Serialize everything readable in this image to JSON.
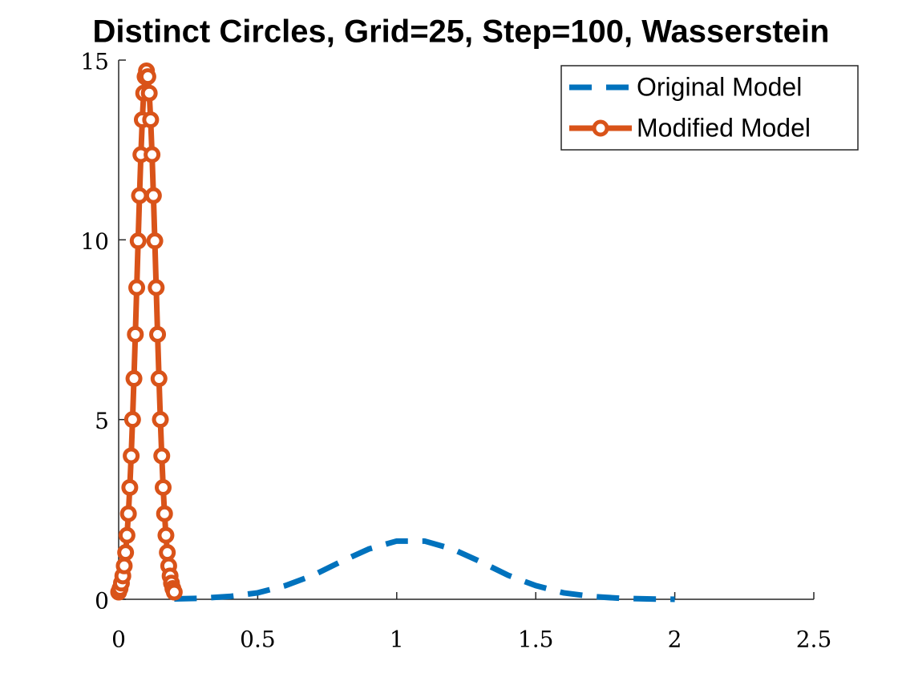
{
  "chart_data": {
    "type": "line",
    "title": "Distinct Circles, Grid=25, Step=100, Wasserstein",
    "xlim": [
      0,
      2.5
    ],
    "xticks": [
      0,
      0.5,
      1,
      1.5,
      2,
      2.5
    ],
    "ylim": [
      0,
      15
    ],
    "yticks": [
      0,
      5,
      10,
      15
    ],
    "legend": "upper right",
    "series": [
      {
        "name": "Original Model",
        "color": "#0072BD",
        "style": "dashed",
        "x": [
          0.2,
          0.3,
          0.4,
          0.5,
          0.6,
          0.7,
          0.8,
          0.9,
          1.0,
          1.1,
          1.2,
          1.3,
          1.4,
          1.5,
          1.6,
          1.7,
          1.8,
          1.9,
          2.0
        ],
        "values": [
          0.01,
          0.03,
          0.08,
          0.18,
          0.38,
          0.67,
          1.05,
          1.4,
          1.62,
          1.62,
          1.4,
          1.05,
          0.67,
          0.38,
          0.18,
          0.08,
          0.03,
          0.01,
          0
        ]
      },
      {
        "name": "Modified Model",
        "color": "#D95319",
        "style": "solid-circles",
        "x": [
          0,
          0.005,
          0.01,
          0.015,
          0.02,
          0.025,
          0.03,
          0.035,
          0.04,
          0.045,
          0.05,
          0.055,
          0.06,
          0.065,
          0.07,
          0.075,
          0.08,
          0.085,
          0.09,
          0.095,
          0.1,
          0.105,
          0.11,
          0.115,
          0.12,
          0.125,
          0.13,
          0.135,
          0.14,
          0.145,
          0.15,
          0.155,
          0.16,
          0.165,
          0.17,
          0.175,
          0.18,
          0.185,
          0.19,
          0.195,
          0.2
        ],
        "values": [
          0.2,
          0.3,
          0.45,
          0.65,
          0.93,
          1.3,
          1.78,
          2.38,
          3.11,
          3.99,
          5,
          6.14,
          7.37,
          8.67,
          9.97,
          11.23,
          12.37,
          13.34,
          14.08,
          14.54,
          14.7,
          14.54,
          14.08,
          13.34,
          12.37,
          11.23,
          9.97,
          8.67,
          7.37,
          6.14,
          5,
          3.99,
          3.11,
          2.38,
          1.78,
          1.3,
          0.93,
          0.65,
          0.45,
          0.3,
          0.2
        ]
      }
    ]
  }
}
